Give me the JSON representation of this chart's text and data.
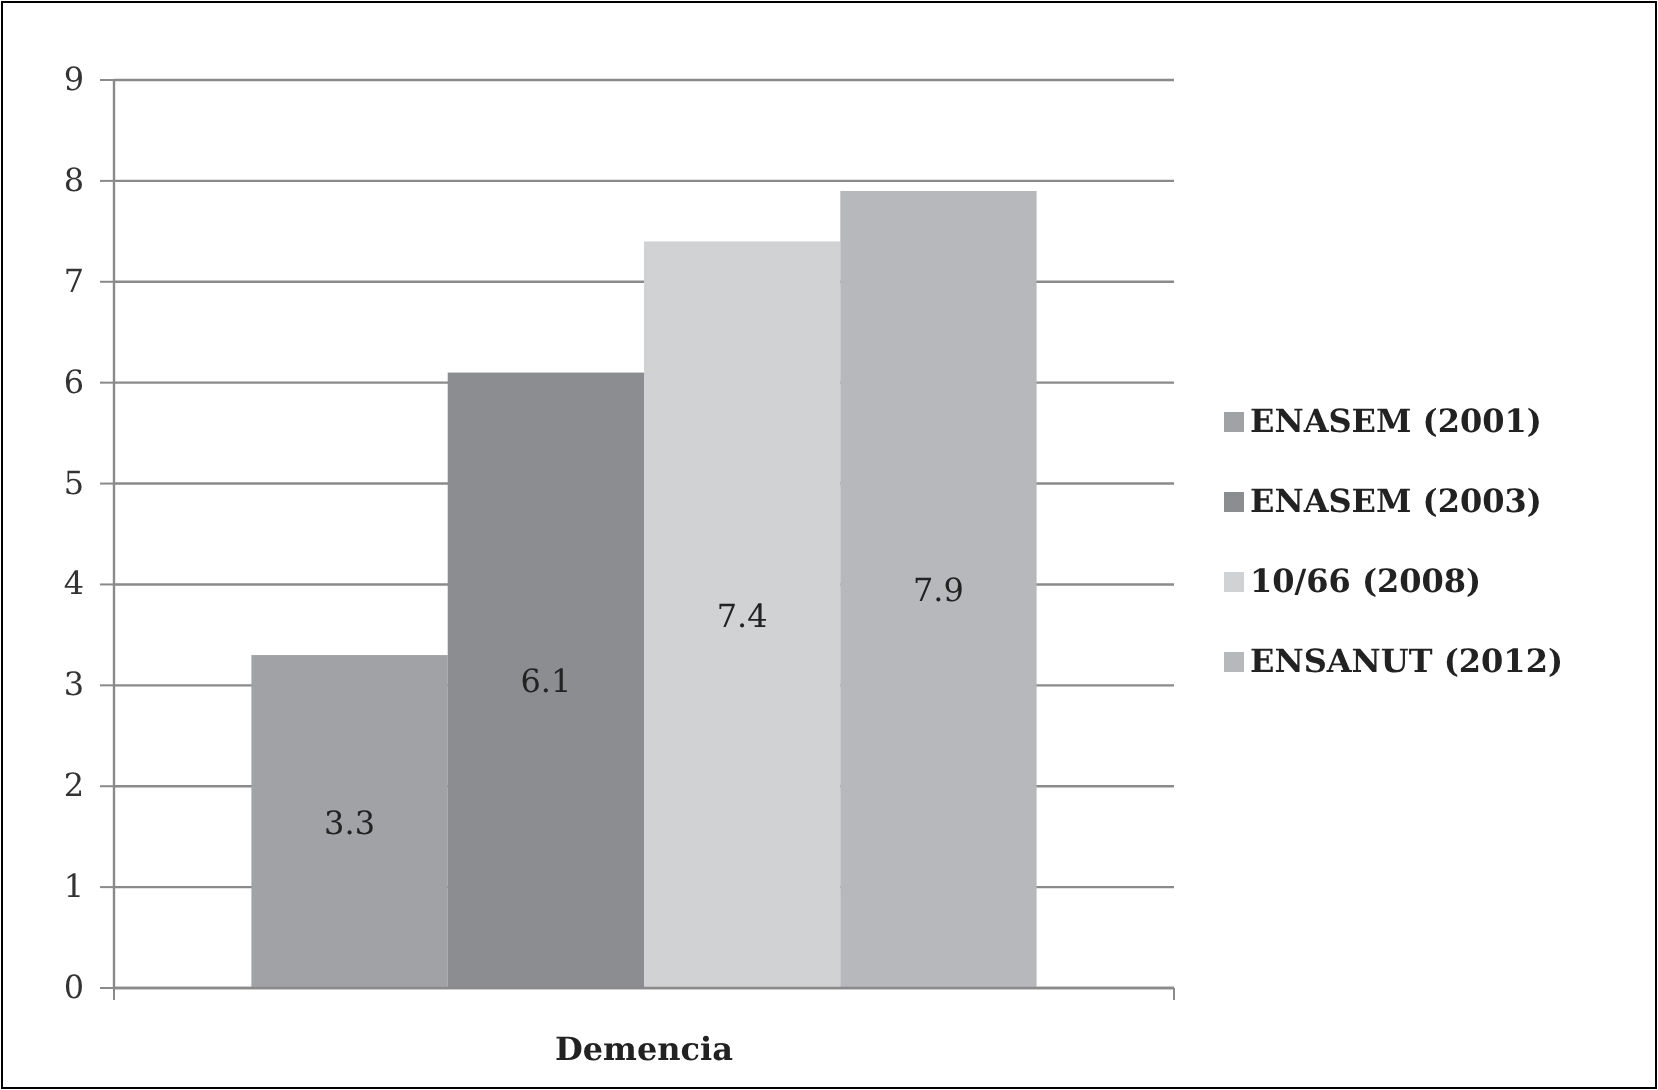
{
  "chart_data": {
    "type": "bar",
    "categories": [
      "Demencia"
    ],
    "series": [
      {
        "name": "ENASEM (2001)",
        "color": "#a1a2a6",
        "values": [
          3.3
        ]
      },
      {
        "name": "ENASEM (2003)",
        "color": "#8c8d91",
        "values": [
          6.1
        ]
      },
      {
        "name": "10/66 (2008)",
        "color": "#d1d2d4",
        "values": [
          7.4
        ]
      },
      {
        "name": "ENSANUT (2012)",
        "color": "#b7b8bc",
        "values": [
          7.9
        ]
      }
    ],
    "ylim": [
      0,
      9
    ],
    "yticks": [
      0,
      1,
      2,
      3,
      4,
      5,
      6,
      7,
      8,
      9
    ],
    "grid": "y",
    "legend": "right",
    "data_labels": true
  }
}
